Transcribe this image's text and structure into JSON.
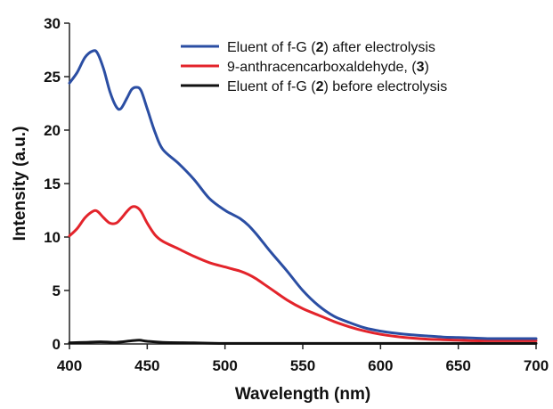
{
  "chart_data": {
    "type": "line",
    "title": "",
    "xlabel": "Wavelength (nm)",
    "ylabel": "Intensity (a.u.)",
    "xlim": [
      400,
      700
    ],
    "ylim": [
      0,
      30
    ],
    "xticks": [
      "400",
      "450",
      "500",
      "550",
      "600",
      "650",
      "700"
    ],
    "yticks": [
      "0",
      "5",
      "10",
      "15",
      "20",
      "25",
      "30"
    ],
    "grid": false,
    "legend_position": "top-right",
    "series": [
      {
        "name": "Eluent of f-G (2) after electrolysis",
        "legend_parts": [
          "Eluent of f-G (",
          "2",
          ") after electrolysis"
        ],
        "color": "#2b4ea3",
        "x": [
          400,
          405,
          410,
          415,
          418,
          422,
          426,
          430,
          433,
          437,
          440,
          443,
          446,
          450,
          455,
          460,
          470,
          480,
          490,
          500,
          505,
          510,
          515,
          520,
          525,
          530,
          540,
          550,
          560,
          570,
          580,
          590,
          600,
          610,
          620,
          630,
          640,
          650,
          660,
          670,
          680,
          690,
          700
        ],
        "y": [
          24.4,
          25.4,
          26.8,
          27.4,
          27.2,
          25.7,
          23.6,
          22.2,
          22.0,
          23.0,
          23.8,
          24.0,
          23.7,
          22.0,
          19.8,
          18.2,
          16.9,
          15.4,
          13.6,
          12.5,
          12.1,
          11.7,
          11.1,
          10.3,
          9.4,
          8.5,
          6.8,
          5.0,
          3.6,
          2.6,
          2.0,
          1.5,
          1.2,
          1.0,
          0.85,
          0.75,
          0.65,
          0.6,
          0.55,
          0.5,
          0.5,
          0.5,
          0.5
        ]
      },
      {
        "name": "9-anthracencarboxaldehyde, (3)",
        "legend_parts": [
          "9-anthracencarboxaldehyde, (",
          "3",
          ")"
        ],
        "color": "#e3242b",
        "x": [
          400,
          405,
          410,
          415,
          418,
          422,
          426,
          430,
          433,
          437,
          440,
          443,
          446,
          450,
          455,
          460,
          470,
          480,
          490,
          500,
          505,
          510,
          515,
          520,
          525,
          530,
          540,
          550,
          560,
          570,
          580,
          590,
          600,
          610,
          620,
          630,
          640,
          650,
          660,
          670,
          680,
          690,
          700
        ],
        "y": [
          10.1,
          10.8,
          11.8,
          12.4,
          12.4,
          11.8,
          11.3,
          11.3,
          11.7,
          12.4,
          12.8,
          12.8,
          12.4,
          11.3,
          10.2,
          9.6,
          8.9,
          8.2,
          7.6,
          7.2,
          7.0,
          6.8,
          6.5,
          6.1,
          5.6,
          5.1,
          4.1,
          3.3,
          2.7,
          2.1,
          1.6,
          1.2,
          0.9,
          0.7,
          0.55,
          0.45,
          0.4,
          0.35,
          0.3,
          0.3,
          0.3,
          0.3,
          0.3
        ]
      },
      {
        "name": "Eluent of f-G (2) before electrolysis",
        "legend_parts": [
          "Eluent of f-G (",
          "2",
          ") before electrolysis"
        ],
        "color": "#111111",
        "x": [
          400,
          410,
          420,
          430,
          440,
          445,
          450,
          460,
          480,
          500,
          550,
          600,
          650,
          700
        ],
        "y": [
          0.1,
          0.15,
          0.2,
          0.15,
          0.3,
          0.35,
          0.25,
          0.15,
          0.1,
          0.05,
          0.05,
          0.05,
          0.05,
          0.05
        ]
      }
    ]
  }
}
